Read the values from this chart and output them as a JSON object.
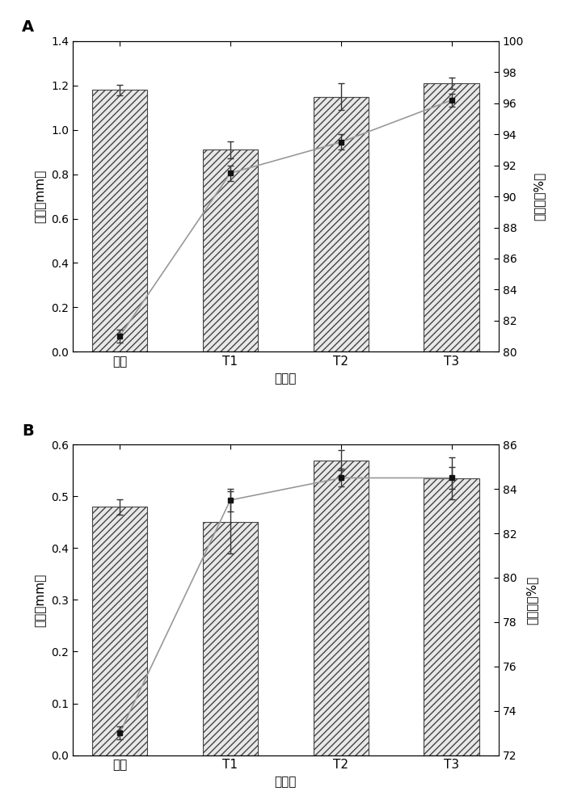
{
  "A": {
    "categories": [
      "对照",
      "T1",
      "T2",
      "T3"
    ],
    "bar_values": [
      1.18,
      0.91,
      1.15,
      1.21
    ],
    "bar_errors": [
      0.025,
      0.04,
      0.06,
      0.025
    ],
    "line_values": [
      81.0,
      91.5,
      93.5,
      96.2
    ],
    "line_errors": [
      0.4,
      0.5,
      0.5,
      0.4
    ],
    "ylabel_left": "粒径（mm）",
    "ylabel_right": "包埋率（%）",
    "xlabel": "处理组",
    "ylim_left": [
      0,
      1.4
    ],
    "ylim_right": [
      80,
      100
    ],
    "yticks_left": [
      0.0,
      0.2,
      0.4,
      0.6,
      0.8,
      1.0,
      1.2,
      1.4
    ],
    "yticks_right": [
      80,
      82,
      84,
      86,
      88,
      90,
      92,
      94,
      96,
      98,
      100
    ],
    "label": "A"
  },
  "B": {
    "categories": [
      "对照",
      "T1",
      "T2",
      "T3"
    ],
    "bar_values": [
      0.48,
      0.45,
      0.57,
      0.535
    ],
    "bar_errors": [
      0.015,
      0.06,
      0.02,
      0.04
    ],
    "line_values": [
      73.0,
      83.5,
      84.5,
      84.5
    ],
    "line_errors": [
      0.3,
      0.5,
      0.4,
      0.5
    ],
    "ylabel_left": "粒径（mm）",
    "ylabel_right": "包埋率（%）",
    "xlabel": "处理组",
    "ylim_left": [
      0,
      0.6
    ],
    "ylim_right": [
      72,
      86
    ],
    "yticks_left": [
      0.0,
      0.1,
      0.2,
      0.3,
      0.4,
      0.5,
      0.6
    ],
    "yticks_right": [
      72,
      74,
      76,
      78,
      80,
      82,
      84,
      86
    ],
    "label": "B"
  },
  "bar_color": "#e8e8e8",
  "bar_hatch": "////",
  "bar_edgecolor": "#444444",
  "line_color": "#999999",
  "marker_color": "#111111",
  "marker_size": 5,
  "bar_width": 0.5,
  "figsize": [
    6.99,
    10.0
  ],
  "dpi": 100
}
